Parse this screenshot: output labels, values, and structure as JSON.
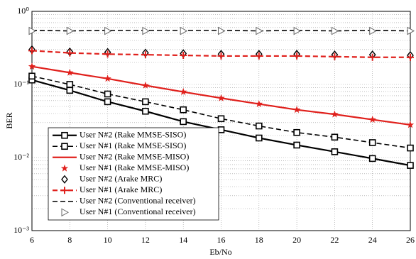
{
  "chart_data": {
    "type": "line",
    "x_label": "Eb/No",
    "y_label": "BER",
    "x": [
      6,
      8,
      10,
      12,
      14,
      16,
      18,
      20,
      22,
      24,
      26
    ],
    "xlim": [
      6,
      26
    ],
    "xticks": [
      6,
      8,
      10,
      12,
      14,
      16,
      18,
      20,
      22,
      24,
      26
    ],
    "ylim": [
      0.001,
      1
    ],
    "y_scale": "log",
    "yticks": [
      {
        "value": 0.001,
        "label": "10⁻³"
      },
      {
        "value": 0.01,
        "label": "10⁻²"
      },
      {
        "value": 0.1,
        "label": "10⁻¹"
      },
      {
        "value": 1,
        "label": "10⁰"
      }
    ],
    "grid": true,
    "legend": "left",
    "series": [
      {
        "name": "User N#2 (Rake MMSE-SISO)",
        "color": "#000000",
        "line": "solid",
        "marker": "square",
        "values": [
          0.115,
          0.083,
          0.058,
          0.043,
          0.031,
          0.024,
          0.0185,
          0.0148,
          0.012,
          0.0097,
          0.0078
        ]
      },
      {
        "name": "User N#1 (Rake MMSE-SISO)",
        "color": "#000000",
        "line": "dashed",
        "marker": "square",
        "values": [
          0.13,
          0.1,
          0.074,
          0.058,
          0.045,
          0.034,
          0.027,
          0.022,
          0.019,
          0.016,
          0.0135
        ]
      },
      {
        "name": "User N#2 (Rake MMSE-MISO)",
        "color": "#e0201c",
        "line": "solid",
        "marker": "none",
        "values": [
          0.176,
          0.145,
          0.12,
          0.097,
          0.079,
          0.065,
          0.054,
          0.045,
          0.039,
          0.033,
          0.028
        ]
      },
      {
        "name": "User N#1 (Rake MMSE-MISO)",
        "color": "#e0201c",
        "line": "none",
        "marker": "star",
        "values": [
          0.176,
          0.145,
          0.12,
          0.097,
          0.079,
          0.065,
          0.054,
          0.045,
          0.039,
          0.033,
          0.028
        ]
      },
      {
        "name": "User N#2 (Arake MRC)",
        "color": "#000000",
        "line": "none",
        "marker": "diamond",
        "values": [
          0.3,
          0.28,
          0.275,
          0.27,
          0.265,
          0.26,
          0.26,
          0.26,
          0.255,
          0.255,
          0.25
        ]
      },
      {
        "name": "User N#1 (Arake MRC)",
        "color": "#e0201c",
        "line": "dashed",
        "marker": "plus",
        "values": [
          0.29,
          0.27,
          0.26,
          0.255,
          0.25,
          0.245,
          0.245,
          0.245,
          0.24,
          0.235,
          0.235
        ]
      },
      {
        "name": "User N#2 (Conventional receiver)",
        "color": "#000000",
        "line": "dashed",
        "marker": "none",
        "values": [
          0.55,
          0.54,
          0.55,
          0.55,
          0.55,
          0.55,
          0.54,
          0.55,
          0.54,
          0.55,
          0.54
        ]
      },
      {
        "name": "User N#1 (Conventional receiver)",
        "color": "#666666",
        "line": "none",
        "marker": "triangle",
        "values": [
          0.54,
          0.54,
          0.54,
          0.54,
          0.54,
          0.54,
          0.54,
          0.54,
          0.54,
          0.54,
          0.54
        ]
      }
    ]
  }
}
